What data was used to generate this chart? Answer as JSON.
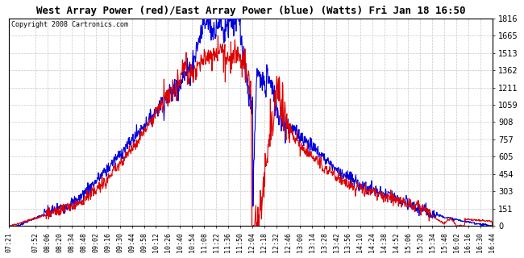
{
  "title": "West Array Power (red)/East Array Power (blue) (Watts) Fri Jan 18 16:50",
  "copyright": "Copyright 2008 Cartronics.com",
  "bg_color": "#ffffff",
  "grid_color": "#c8c8c8",
  "grid_style": "--",
  "ymin": 0.0,
  "ymax": 1816.0,
  "yticks": [
    0.0,
    151.3,
    302.7,
    454.0,
    605.3,
    756.7,
    908.0,
    1059.3,
    1210.7,
    1362.0,
    1513.3,
    1664.6,
    1816.0
  ],
  "xtick_labels": [
    "07:21",
    "07:52",
    "08:06",
    "08:20",
    "08:34",
    "08:48",
    "09:02",
    "09:16",
    "09:30",
    "09:44",
    "09:58",
    "10:12",
    "10:26",
    "10:40",
    "10:54",
    "11:08",
    "11:22",
    "11:36",
    "11:50",
    "12:04",
    "12:18",
    "12:32",
    "12:46",
    "13:00",
    "13:14",
    "13:28",
    "13:42",
    "13:56",
    "14:10",
    "14:24",
    "14:38",
    "14:52",
    "15:06",
    "15:20",
    "15:34",
    "15:48",
    "16:02",
    "16:16",
    "16:30",
    "16:44"
  ],
  "red_line_color": "#dd0000",
  "blue_line_color": "#0000dd",
  "line_width": 0.8,
  "title_fontsize": 9,
  "copyright_fontsize": 6,
  "ytick_fontsize": 7,
  "xtick_fontsize": 6
}
